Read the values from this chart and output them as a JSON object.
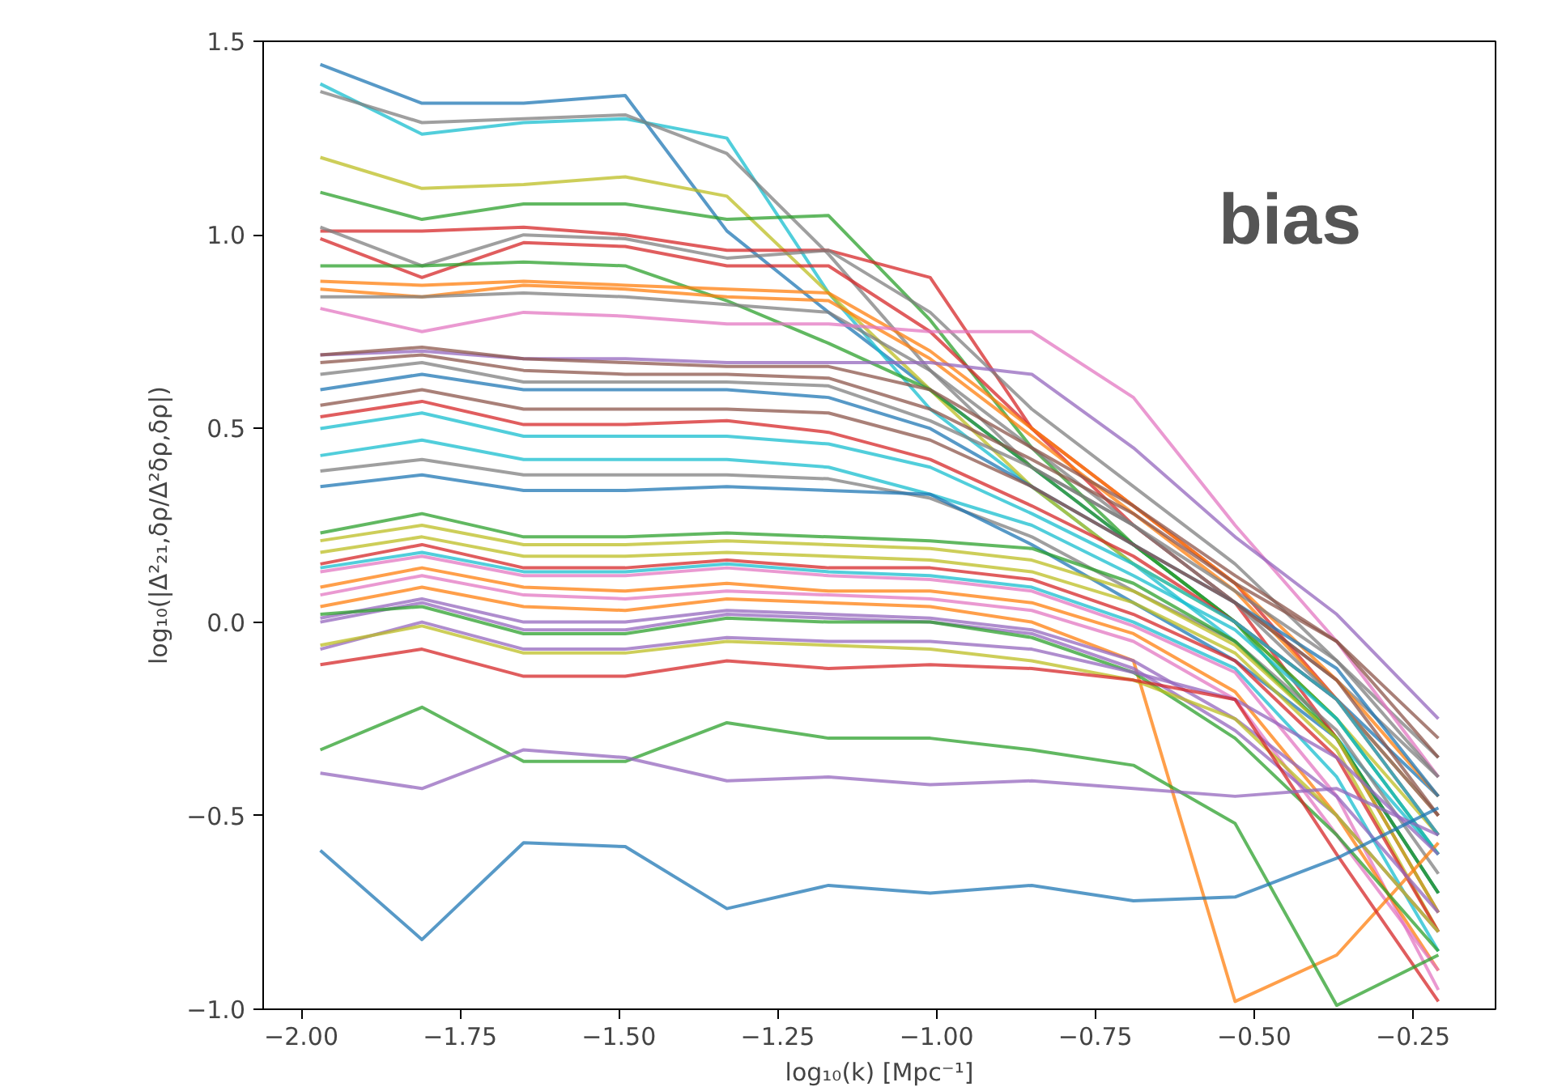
{
  "chart_data": {
    "type": "line",
    "xlabel": "log₁₀(k) [Mpc⁻¹]",
    "ylabel": "log₁₀(|Δ²₂₁,δρ/Δ²δρ,δρ|)",
    "annotations": [
      "bias"
    ],
    "x": [
      -1.97,
      -1.81,
      -1.65,
      -1.49,
      -1.33,
      -1.17,
      -1.01,
      -0.85,
      -0.69,
      -0.53,
      -0.37,
      -0.21
    ],
    "xlim": [
      -2.06,
      -0.12
    ],
    "ylim": [
      -1.0,
      1.5
    ],
    "xticks": [
      {
        "value": -2.0,
        "label": "−2.00"
      },
      {
        "value": -1.75,
        "label": "−1.75"
      },
      {
        "value": -1.5,
        "label": "−1.50"
      },
      {
        "value": -1.25,
        "label": "−1.25"
      },
      {
        "value": -1.0,
        "label": "−1.00"
      },
      {
        "value": -0.75,
        "label": "−0.75"
      },
      {
        "value": -0.5,
        "label": "−0.50"
      },
      {
        "value": -0.25,
        "label": "−0.25"
      }
    ],
    "yticks": [
      {
        "value": -1.0,
        "label": "−1.0"
      },
      {
        "value": -0.5,
        "label": "−0.5"
      },
      {
        "value": 0.0,
        "label": "0.0"
      },
      {
        "value": 0.5,
        "label": "0.5"
      },
      {
        "value": 1.0,
        "label": "1.0"
      },
      {
        "value": 1.5,
        "label": "1.5"
      }
    ],
    "grid": false,
    "line_style": "solid",
    "marker": "none",
    "series": [
      {
        "color": "#1f77b4",
        "values": [
          1.44,
          1.34,
          1.34,
          1.36,
          1.01,
          0.8,
          0.6,
          0.4,
          0.2,
          0.0,
          -0.2,
          -0.45
        ]
      },
      {
        "color": "#17becf",
        "values": [
          1.39,
          1.26,
          1.29,
          1.3,
          1.25,
          0.85,
          0.55,
          0.35,
          0.15,
          -0.05,
          -0.3,
          -0.6
        ]
      },
      {
        "color": "#7f7f7f",
        "values": [
          1.37,
          1.29,
          1.3,
          1.31,
          1.21,
          0.95,
          0.65,
          0.4,
          0.25,
          0.05,
          -0.15,
          -0.4
        ]
      },
      {
        "color": "#bcbd22",
        "values": [
          1.2,
          1.12,
          1.13,
          1.15,
          1.1,
          0.85,
          0.6,
          0.35,
          0.15,
          0.0,
          -0.25,
          -0.55
        ]
      },
      {
        "color": "#2ca02c",
        "values": [
          1.11,
          1.04,
          1.08,
          1.08,
          1.04,
          1.05,
          0.78,
          0.45,
          0.2,
          0.0,
          -0.3,
          -0.7
        ]
      },
      {
        "color": "#d62728",
        "values": [
          1.01,
          1.01,
          1.02,
          1.0,
          0.96,
          0.96,
          0.89,
          0.5,
          0.25,
          0.05,
          -0.3,
          -0.75
        ]
      },
      {
        "color": "#7f7f7f",
        "values": [
          1.02,
          0.92,
          1.0,
          0.99,
          0.94,
          0.96,
          0.8,
          0.55,
          0.35,
          0.15,
          -0.1,
          -0.35
        ]
      },
      {
        "color": "#d62728",
        "values": [
          0.99,
          0.89,
          0.98,
          0.97,
          0.92,
          0.92,
          0.75,
          0.5,
          0.3,
          0.1,
          -0.2,
          -0.5
        ]
      },
      {
        "color": "#2ca02c",
        "values": [
          0.92,
          0.92,
          0.93,
          0.92,
          0.83,
          0.72,
          0.6,
          0.4,
          0.2,
          0.0,
          -0.25,
          -0.6
        ]
      },
      {
        "color": "#ff7f0e",
        "values": [
          0.88,
          0.87,
          0.88,
          0.87,
          0.86,
          0.85,
          0.7,
          0.5,
          0.3,
          0.1,
          -0.15,
          -0.45
        ]
      },
      {
        "color": "#ff7f0e",
        "values": [
          0.86,
          0.84,
          0.87,
          0.86,
          0.84,
          0.83,
          0.68,
          0.48,
          0.28,
          0.08,
          -0.2,
          -0.5
        ]
      },
      {
        "color": "#7f7f7f",
        "values": [
          0.84,
          0.84,
          0.85,
          0.84,
          0.82,
          0.8,
          0.65,
          0.45,
          0.25,
          0.05,
          -0.2,
          -0.5
        ]
      },
      {
        "color": "#e377c2",
        "values": [
          0.81,
          0.75,
          0.8,
          0.79,
          0.77,
          0.77,
          0.75,
          0.75,
          0.58,
          0.25,
          -0.05,
          -0.4
        ]
      },
      {
        "color": "#9467bd",
        "values": [
          0.69,
          0.7,
          0.68,
          0.68,
          0.67,
          0.67,
          0.67,
          0.64,
          0.45,
          0.22,
          0.02,
          -0.25
        ]
      },
      {
        "color": "#8c564b",
        "values": [
          0.69,
          0.71,
          0.68,
          0.67,
          0.66,
          0.66,
          0.6,
          0.45,
          0.3,
          0.12,
          -0.05,
          -0.3
        ]
      },
      {
        "color": "#8c564b",
        "values": [
          0.67,
          0.69,
          0.65,
          0.64,
          0.64,
          0.63,
          0.55,
          0.42,
          0.28,
          0.1,
          -0.05,
          -0.35
        ]
      },
      {
        "color": "#7f7f7f",
        "values": [
          0.64,
          0.67,
          0.62,
          0.62,
          0.62,
          0.61,
          0.52,
          0.4,
          0.25,
          0.08,
          -0.1,
          -0.4
        ]
      },
      {
        "color": "#1f77b4",
        "values": [
          0.6,
          0.64,
          0.6,
          0.6,
          0.6,
          0.58,
          0.5,
          0.35,
          0.2,
          0.05,
          -0.12,
          -0.45
        ]
      },
      {
        "color": "#8c564b",
        "values": [
          0.56,
          0.6,
          0.55,
          0.55,
          0.55,
          0.54,
          0.47,
          0.35,
          0.2,
          0.05,
          -0.15,
          -0.5
        ]
      },
      {
        "color": "#d62728",
        "values": [
          0.53,
          0.57,
          0.51,
          0.51,
          0.52,
          0.49,
          0.42,
          0.3,
          0.17,
          0.0,
          -0.2,
          -0.55
        ]
      },
      {
        "color": "#17becf",
        "values": [
          0.5,
          0.54,
          0.48,
          0.48,
          0.48,
          0.46,
          0.4,
          0.28,
          0.15,
          0.0,
          -0.2,
          -0.55
        ]
      },
      {
        "color": "#17becf",
        "values": [
          0.43,
          0.47,
          0.42,
          0.42,
          0.42,
          0.4,
          0.33,
          0.25,
          0.12,
          -0.02,
          -0.25,
          -0.6
        ]
      },
      {
        "color": "#7f7f7f",
        "values": [
          0.39,
          0.42,
          0.38,
          0.38,
          0.38,
          0.37,
          0.32,
          0.22,
          0.08,
          -0.05,
          -0.28,
          -0.65
        ]
      },
      {
        "color": "#1f77b4",
        "values": [
          0.35,
          0.38,
          0.34,
          0.34,
          0.35,
          0.34,
          0.33,
          0.2,
          0.05,
          -0.1,
          -0.3,
          -0.7
        ]
      },
      {
        "color": "#2ca02c",
        "values": [
          0.23,
          0.28,
          0.22,
          0.22,
          0.23,
          0.22,
          0.21,
          0.19,
          0.1,
          -0.05,
          -0.3,
          -0.7
        ]
      },
      {
        "color": "#bcbd22",
        "values": [
          0.21,
          0.25,
          0.2,
          0.2,
          0.21,
          0.2,
          0.19,
          0.16,
          0.08,
          -0.06,
          -0.3,
          -0.75
        ]
      },
      {
        "color": "#bcbd22",
        "values": [
          0.18,
          0.22,
          0.17,
          0.17,
          0.18,
          0.17,
          0.16,
          0.13,
          0.05,
          -0.08,
          -0.33,
          -0.8
        ]
      },
      {
        "color": "#d62728",
        "values": [
          0.15,
          0.2,
          0.14,
          0.14,
          0.16,
          0.14,
          0.14,
          0.11,
          0.02,
          -0.1,
          -0.35,
          -0.8
        ]
      },
      {
        "color": "#17becf",
        "values": [
          0.14,
          0.18,
          0.13,
          0.13,
          0.15,
          0.13,
          0.12,
          0.09,
          0.0,
          -0.12,
          -0.4,
          -0.85
        ]
      },
      {
        "color": "#e377c2",
        "values": [
          0.13,
          0.17,
          0.12,
          0.12,
          0.14,
          0.12,
          0.11,
          0.08,
          -0.01,
          -0.13,
          -0.45,
          -0.95
        ]
      },
      {
        "color": "#ff7f0e",
        "values": [
          0.09,
          0.14,
          0.09,
          0.08,
          0.1,
          0.08,
          0.08,
          0.05,
          -0.03,
          -0.18,
          -0.5,
          -0.9
        ]
      },
      {
        "color": "#e377c2",
        "values": [
          0.07,
          0.12,
          0.07,
          0.06,
          0.08,
          0.07,
          0.06,
          0.03,
          -0.05,
          -0.2,
          -0.55,
          -0.9
        ]
      },
      {
        "color": "#ff7f0e",
        "values": [
          0.04,
          0.09,
          0.04,
          0.03,
          0.06,
          0.05,
          0.04,
          0.0,
          -0.1,
          -0.98,
          -0.86,
          -0.57
        ]
      },
      {
        "color": "#9467bd",
        "values": [
          0.01,
          0.06,
          0.0,
          0.0,
          0.03,
          0.02,
          0.01,
          -0.02,
          -0.1,
          -0.25,
          -0.45,
          -0.75
        ]
      },
      {
        "color": "#9467bd",
        "values": [
          0.0,
          0.05,
          -0.02,
          -0.02,
          0.02,
          0.01,
          0.0,
          -0.03,
          -0.12,
          -0.28,
          -0.5,
          -0.8
        ]
      },
      {
        "color": "#2ca02c",
        "values": [
          0.02,
          0.04,
          -0.03,
          -0.03,
          0.01,
          0.0,
          0.0,
          -0.04,
          -0.13,
          -0.3,
          -0.55,
          -0.85
        ]
      },
      {
        "color": "#9467bd",
        "values": [
          -0.07,
          0.0,
          -0.07,
          -0.07,
          -0.04,
          -0.05,
          -0.05,
          -0.07,
          -0.13,
          -0.2,
          -0.35,
          -0.6
        ]
      },
      {
        "color": "#bcbd22",
        "values": [
          -0.06,
          -0.01,
          -0.08,
          -0.08,
          -0.05,
          -0.06,
          -0.07,
          -0.1,
          -0.15,
          -0.25,
          -0.5,
          -0.8
        ]
      },
      {
        "color": "#d62728",
        "values": [
          -0.11,
          -0.07,
          -0.14,
          -0.14,
          -0.1,
          -0.12,
          -0.11,
          -0.12,
          -0.15,
          -0.2,
          -0.6,
          -0.98
        ]
      },
      {
        "color": "#2ca02c",
        "values": [
          -0.33,
          -0.22,
          -0.36,
          -0.36,
          -0.26,
          -0.3,
          -0.3,
          -0.33,
          -0.37,
          -0.52,
          -0.99,
          -0.86
        ]
      },
      {
        "color": "#9467bd",
        "values": [
          -0.39,
          -0.43,
          -0.33,
          -0.35,
          -0.41,
          -0.4,
          -0.42,
          -0.41,
          -0.43,
          -0.45,
          -0.43,
          -0.55
        ]
      },
      {
        "color": "#1f77b4",
        "values": [
          -0.59,
          -0.82,
          -0.57,
          -0.58,
          -0.74,
          -0.68,
          -0.7,
          -0.68,
          -0.72,
          -0.71,
          -0.61,
          -0.48
        ]
      }
    ]
  }
}
